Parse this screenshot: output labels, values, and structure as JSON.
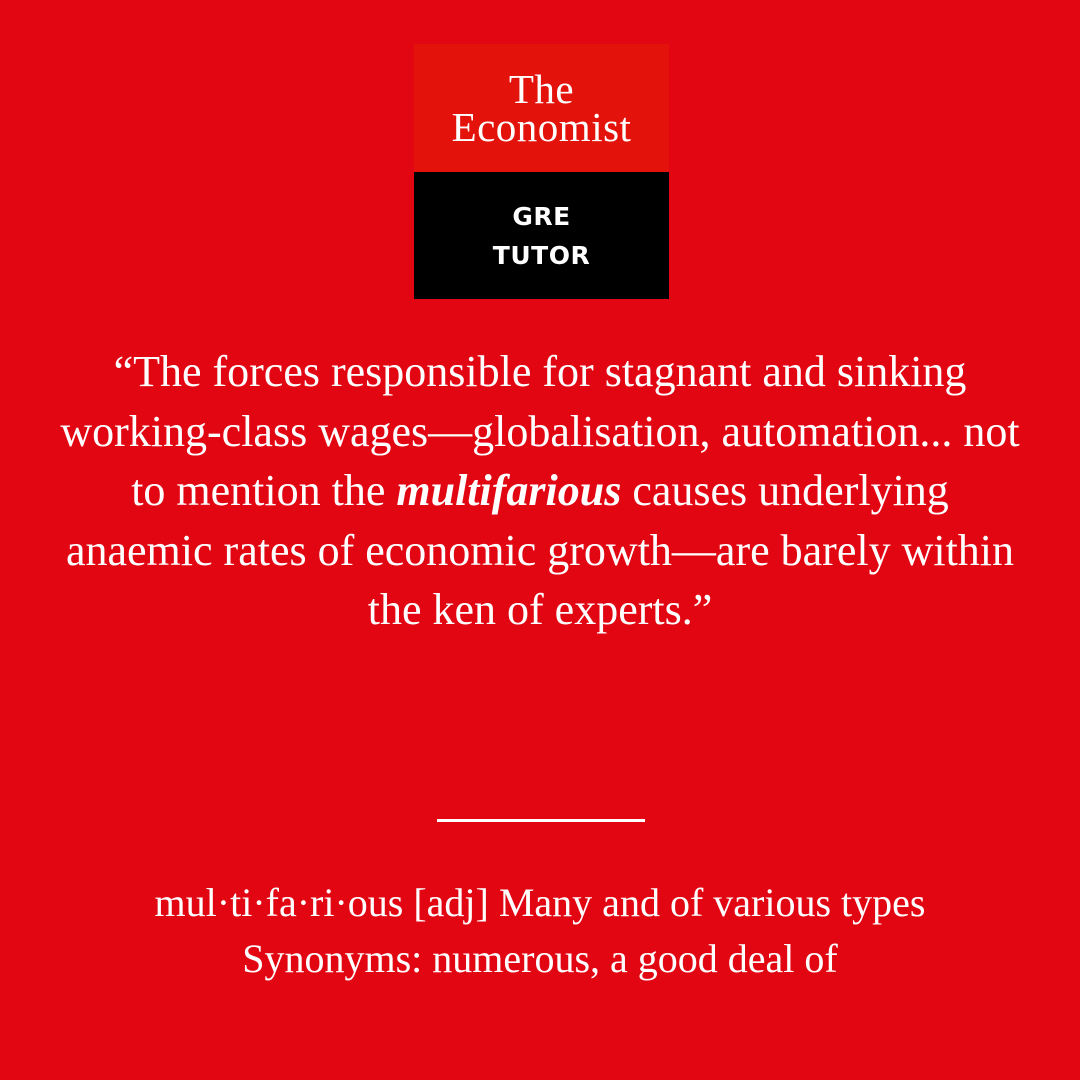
{
  "logo": {
    "line1": "The",
    "line2": "Economist",
    "sub_line1": "GRE",
    "sub_line2": "TUTOR"
  },
  "quote": {
    "before": "“The forces responsible for stagnant and sinking working-class wages—globalisation, automation... not to mention the ",
    "word": "multifarious",
    "after": " causes underlying anaemic rates of economic growth—are barely within the ken of experts.”"
  },
  "definition": {
    "entry": "mul·ti·fa·ri·ous [adj] Many and of various types",
    "synonyms": "Synonyms: numerous, a good deal of"
  },
  "colors": {
    "background": "#e20613",
    "logo_red": "#e3120b",
    "logo_black": "#000000",
    "text": "#ffffff"
  }
}
